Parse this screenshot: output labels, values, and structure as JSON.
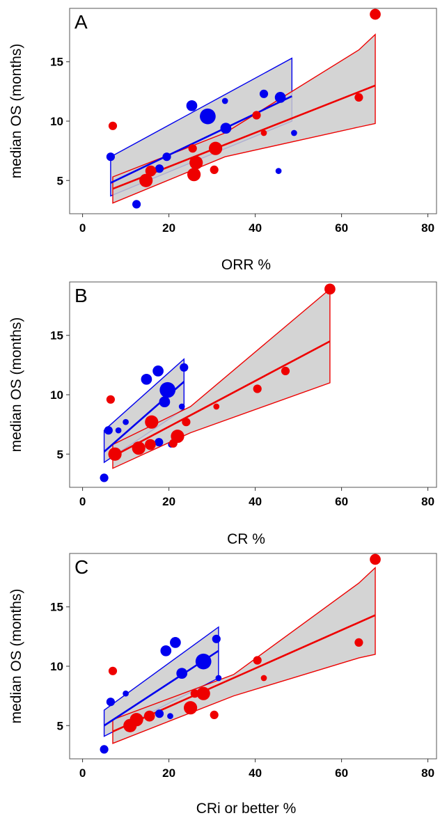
{
  "colors": {
    "blue": "#0000ee",
    "red": "#ee0000",
    "band_fill": "#cccccc",
    "frame": "#555555"
  },
  "chart_data": [
    {
      "type": "scatter",
      "panel_label": "A",
      "xlabel": "ORR %",
      "ylabel": "median OS (months)",
      "xlim": [
        -3,
        82
      ],
      "ylim": [
        2.2,
        19.5
      ],
      "x_ticks": [
        "0",
        "20",
        "40",
        "60",
        "80"
      ],
      "y_ticks": [
        "5",
        "10",
        "15"
      ],
      "grid": false,
      "series": [
        {
          "color": "blue",
          "points": [
            {
              "x": 6.5,
              "y": 7.0,
              "size": 2
            },
            {
              "x": 12.5,
              "y": 3.0,
              "size": 2
            },
            {
              "x": 17.8,
              "y": 6.0,
              "size": 2
            },
            {
              "x": 19.5,
              "y": 7.0,
              "size": 2
            },
            {
              "x": 25.3,
              "y": 11.3,
              "size": 3
            },
            {
              "x": 29.0,
              "y": 10.4,
              "size": 5
            },
            {
              "x": 33.0,
              "y": 11.7,
              "size": 1
            },
            {
              "x": 33.2,
              "y": 9.4,
              "size": 3
            },
            {
              "x": 42.0,
              "y": 12.3,
              "size": 2
            },
            {
              "x": 45.4,
              "y": 5.8,
              "size": 1
            },
            {
              "x": 45.8,
              "y": 12.0,
              "size": 3
            },
            {
              "x": 49.0,
              "y": 9.0,
              "size": 1
            }
          ],
          "fit_line": [
            [
              6.5,
              4.8
            ],
            [
              48.5,
              12.1
            ]
          ],
          "ci_band": {
            "x": [
              6.5,
              48.5
            ],
            "upper": [
              7.0,
              15.3
            ],
            "lower": [
              3.7,
              10.0
            ]
          }
        },
        {
          "color": "red",
          "points": [
            {
              "x": 7.0,
              "y": 9.6,
              "size": 2
            },
            {
              "x": 14.7,
              "y": 5.0,
              "size": 4
            },
            {
              "x": 15.8,
              "y": 5.8,
              "size": 3
            },
            {
              "x": 25.5,
              "y": 7.7,
              "size": 2
            },
            {
              "x": 25.8,
              "y": 5.5,
              "size": 4
            },
            {
              "x": 26.3,
              "y": 6.5,
              "size": 4
            },
            {
              "x": 30.5,
              "y": 5.9,
              "size": 2
            },
            {
              "x": 30.8,
              "y": 7.7,
              "size": 4
            },
            {
              "x": 40.3,
              "y": 10.5,
              "size": 2
            },
            {
              "x": 42.0,
              "y": 9.0,
              "size": 1
            },
            {
              "x": 64.0,
              "y": 12.0,
              "size": 2
            },
            {
              "x": 67.8,
              "y": 19.0,
              "size": 3
            }
          ],
          "fit_line": [
            [
              7.0,
              4.3
            ],
            [
              67.8,
              13.0
            ]
          ],
          "ci_band": {
            "x": [
              7.0,
              33.0,
              64.0,
              67.8
            ],
            "upper": [
              5.3,
              9.0,
              16.0,
              17.3
            ],
            "lower": [
              3.1,
              7.0,
              9.5,
              9.8
            ]
          }
        }
      ]
    },
    {
      "type": "scatter",
      "panel_label": "B",
      "xlabel": "CR %",
      "ylabel": "median OS (months)",
      "xlim": [
        -3,
        82
      ],
      "ylim": [
        2.2,
        19.5
      ],
      "x_ticks": [
        "0",
        "20",
        "40",
        "60",
        "80"
      ],
      "y_ticks": [
        "5",
        "10",
        "15"
      ],
      "grid": false,
      "series": [
        {
          "color": "blue",
          "points": [
            {
              "x": 5.0,
              "y": 3.0,
              "size": 2
            },
            {
              "x": 6.0,
              "y": 7.0,
              "size": 2
            },
            {
              "x": 8.3,
              "y": 7.0,
              "size": 1
            },
            {
              "x": 10.0,
              "y": 7.7,
              "size": 1
            },
            {
              "x": 14.8,
              "y": 11.3,
              "size": 3
            },
            {
              "x": 17.5,
              "y": 12.0,
              "size": 3
            },
            {
              "x": 17.7,
              "y": 6.0,
              "size": 2
            },
            {
              "x": 19.0,
              "y": 9.4,
              "size": 3
            },
            {
              "x": 19.7,
              "y": 10.4,
              "size": 5
            },
            {
              "x": 20.5,
              "y": 5.8,
              "size": 1
            },
            {
              "x": 23.0,
              "y": 9.0,
              "size": 1
            },
            {
              "x": 23.5,
              "y": 12.3,
              "size": 2
            }
          ],
          "fit_line": [
            [
              5.0,
              5.2
            ],
            [
              23.5,
              11.1
            ]
          ],
          "ci_band": {
            "x": [
              5.0,
              23.5
            ],
            "upper": [
              7.0,
              13.0
            ],
            "lower": [
              4.3,
              8.8
            ]
          }
        },
        {
          "color": "red",
          "points": [
            {
              "x": 6.5,
              "y": 9.6,
              "size": 2
            },
            {
              "x": 7.5,
              "y": 5.0,
              "size": 4
            },
            {
              "x": 13.0,
              "y": 5.5,
              "size": 4
            },
            {
              "x": 15.7,
              "y": 5.8,
              "size": 3
            },
            {
              "x": 16.0,
              "y": 7.7,
              "size": 4
            },
            {
              "x": 21.0,
              "y": 5.9,
              "size": 2
            },
            {
              "x": 22.0,
              "y": 6.5,
              "size": 4
            },
            {
              "x": 24.0,
              "y": 7.7,
              "size": 2
            },
            {
              "x": 31.0,
              "y": 9.0,
              "size": 1
            },
            {
              "x": 40.5,
              "y": 10.5,
              "size": 2
            },
            {
              "x": 47.0,
              "y": 12.0,
              "size": 2
            },
            {
              "x": 57.3,
              "y": 18.9,
              "size": 3
            }
          ],
          "fit_line": [
            [
              7.0,
              4.8
            ],
            [
              57.3,
              14.5
            ]
          ],
          "ci_band": {
            "x": [
              7.0,
              25.0,
              57.3
            ],
            "upper": [
              5.8,
              9.0,
              18.9
            ],
            "lower": [
              3.8,
              6.8,
              11.0
            ]
          }
        }
      ]
    },
    {
      "type": "scatter",
      "panel_label": "C",
      "xlabel": "CRi or better %",
      "ylabel": "median OS (months)",
      "xlim": [
        -3,
        82
      ],
      "ylim": [
        2.2,
        19.5
      ],
      "x_ticks": [
        "0",
        "20",
        "40",
        "60",
        "80"
      ],
      "y_ticks": [
        "5",
        "10",
        "15"
      ],
      "grid": false,
      "series": [
        {
          "color": "blue",
          "points": [
            {
              "x": 5.0,
              "y": 3.0,
              "size": 2
            },
            {
              "x": 6.5,
              "y": 7.0,
              "size": 2
            },
            {
              "x": 10.0,
              "y": 7.7,
              "size": 1
            },
            {
              "x": 17.8,
              "y": 6.0,
              "size": 2
            },
            {
              "x": 19.3,
              "y": 11.3,
              "size": 3
            },
            {
              "x": 20.3,
              "y": 5.8,
              "size": 1
            },
            {
              "x": 21.5,
              "y": 12.0,
              "size": 3
            },
            {
              "x": 23.0,
              "y": 9.4,
              "size": 3
            },
            {
              "x": 28.0,
              "y": 10.4,
              "size": 5
            },
            {
              "x": 31.0,
              "y": 12.3,
              "size": 2
            },
            {
              "x": 31.5,
              "y": 9.0,
              "size": 1
            }
          ],
          "fit_line": [
            [
              5.0,
              5.0
            ],
            [
              31.5,
              11.3
            ]
          ],
          "ci_band": {
            "x": [
              5.0,
              31.5
            ],
            "upper": [
              6.3,
              13.3
            ],
            "lower": [
              4.1,
              9.0
            ]
          }
        },
        {
          "color": "red",
          "points": [
            {
              "x": 7.0,
              "y": 9.6,
              "size": 2
            },
            {
              "x": 11.0,
              "y": 5.0,
              "size": 4
            },
            {
              "x": 12.5,
              "y": 5.5,
              "size": 4
            },
            {
              "x": 15.5,
              "y": 5.8,
              "size": 3
            },
            {
              "x": 25.0,
              "y": 6.5,
              "size": 4
            },
            {
              "x": 26.0,
              "y": 7.7,
              "size": 2
            },
            {
              "x": 28.0,
              "y": 7.7,
              "size": 4
            },
            {
              "x": 30.5,
              "y": 5.9,
              "size": 2
            },
            {
              "x": 40.5,
              "y": 10.5,
              "size": 2
            },
            {
              "x": 42.0,
              "y": 9.0,
              "size": 1
            },
            {
              "x": 64.0,
              "y": 12.0,
              "size": 2
            },
            {
              "x": 67.8,
              "y": 19.0,
              "size": 3
            }
          ],
          "fit_line": [
            [
              7.0,
              4.5
            ],
            [
              67.8,
              14.3
            ]
          ],
          "ci_band": {
            "x": [
              7.0,
              35.0,
              64.0,
              67.8
            ],
            "upper": [
              5.5,
              9.3,
              17.0,
              18.3
            ],
            "lower": [
              3.5,
              7.5,
              10.7,
              11.0
            ]
          }
        }
      ]
    }
  ]
}
